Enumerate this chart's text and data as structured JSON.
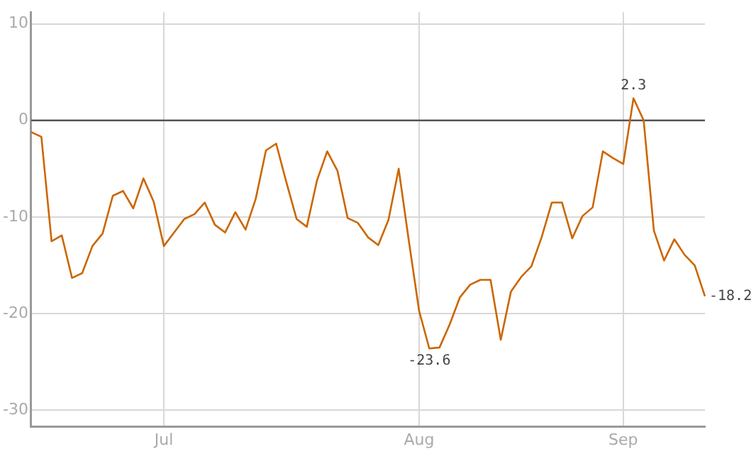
{
  "chart_data": {
    "type": "line",
    "categories": [
      null,
      null,
      null,
      null,
      null,
      null,
      null,
      null,
      null,
      null,
      null,
      null,
      null,
      "Jul",
      null,
      null,
      null,
      null,
      null,
      null,
      null,
      null,
      null,
      null,
      null,
      null,
      null,
      null,
      null,
      null,
      null,
      null,
      null,
      null,
      null,
      null,
      null,
      null,
      "Aug",
      null,
      null,
      null,
      null,
      null,
      null,
      null,
      null,
      null,
      null,
      null,
      null,
      null,
      null,
      null,
      null,
      null,
      null,
      null,
      "Sep",
      null,
      null,
      null,
      null,
      null,
      null,
      null,
      null
    ],
    "series": [
      {
        "color": "#cc6600",
        "values": [
          -1.2,
          -1.7,
          -12.5,
          -11.9,
          -16.3,
          -15.8,
          -13.0,
          -11.7,
          -7.8,
          -7.3,
          -9.1,
          -6.0,
          -8.4,
          -13.0,
          -11.6,
          -10.2,
          -9.7,
          -8.5,
          -10.8,
          -11.6,
          -9.5,
          -11.3,
          -8.1,
          -3.1,
          -2.4,
          -6.4,
          -10.2,
          -11.0,
          -6.2,
          -3.2,
          -5.2,
          -10.1,
          -10.6,
          -12.1,
          -12.9,
          -10.3,
          -5.0,
          -12.5,
          -19.7,
          -23.6,
          -23.5,
          -21.1,
          -18.3,
          -17.0,
          -16.5,
          -16.5,
          -22.7,
          -17.7,
          -16.2,
          -15.1,
          -12.1,
          -8.5,
          -8.5,
          -12.2,
          -9.9,
          -9.0,
          -3.2,
          -3.9,
          -4.5,
          2.3,
          0.0,
          -11.4,
          -14.5,
          -12.3,
          -13.9,
          -15.0,
          -18.2
        ],
        "value_labels": [
          null,
          null,
          null,
          null,
          null,
          null,
          null,
          null,
          null,
          null,
          null,
          null,
          null,
          null,
          null,
          null,
          null,
          null,
          null,
          null,
          null,
          null,
          null,
          null,
          null,
          null,
          null,
          null,
          null,
          null,
          null,
          null,
          null,
          null,
          null,
          null,
          null,
          null,
          null,
          "-23.6",
          null,
          null,
          null,
          null,
          null,
          null,
          null,
          null,
          null,
          null,
          null,
          null,
          null,
          null,
          null,
          null,
          null,
          null,
          null,
          "2.3",
          null,
          null,
          null,
          null,
          null,
          null,
          "-18.2"
        ]
      }
    ],
    "ylim": [
      -31.7,
      11.2
    ],
    "yticks": [
      -30,
      -20,
      -10,
      0,
      10
    ],
    "grid": true,
    "legend": false,
    "marker": "none",
    "line_style": "solid",
    "ref_lines": [
      {
        "axis": "y",
        "value": 0,
        "color": "#555555"
      }
    ]
  }
}
